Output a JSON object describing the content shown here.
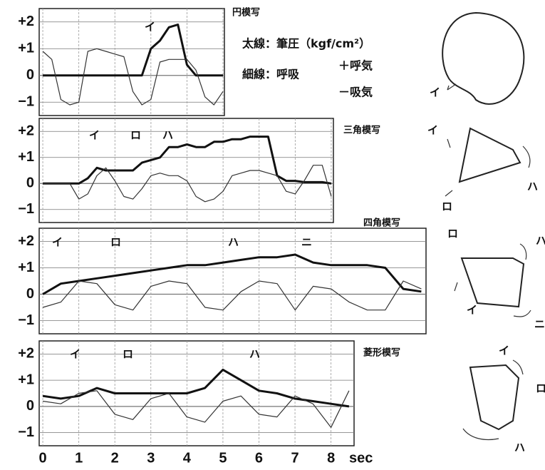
{
  "chart_data": [
    {
      "type": "line",
      "title": "円模写",
      "notes": [
        "太線：筆圧（kgf/cm²）",
        "細線：呼吸",
        "＋呼気",
        "－吸気"
      ],
      "annotations": [
        "イ"
      ],
      "drawing_labels": [
        "イ"
      ],
      "xlim": [
        -0.1,
        5.04
      ],
      "ylim": [
        -1.5,
        2.5
      ],
      "yticks": [
        {
          "value": 2,
          "label": "+2"
        },
        {
          "value": 1,
          "label": "+1"
        },
        0,
        {
          "value": -1,
          "label": "−1"
        }
      ],
      "grid": true,
      "x": [
        0,
        0.25,
        0.5,
        0.75,
        1,
        1.25,
        1.5,
        1.75,
        2,
        2.25,
        2.5,
        2.75,
        3,
        3.25,
        3.5,
        3.75,
        4,
        4.25,
        4.5,
        4.75,
        5
      ],
      "series": [
        {
          "color": "#111111",
          "line_width": 3,
          "values": [
            0,
            0,
            0,
            0,
            0,
            0,
            0,
            0,
            0,
            0,
            0,
            0,
            1.0,
            1.3,
            1.8,
            1.9,
            0.4,
            0,
            0,
            0,
            0
          ]
        },
        {
          "color": "#333333",
          "line_width": 1.2,
          "values": [
            0.9,
            0.6,
            -0.9,
            -1.1,
            -1.0,
            0.9,
            1.0,
            0.9,
            0.8,
            0.7,
            -0.6,
            -1.1,
            -0.9,
            0.5,
            0.6,
            0.6,
            0.6,
            0.2,
            -0.8,
            -1.1,
            -0.6
          ]
        }
      ]
    },
    {
      "type": "line",
      "title": "三角模写",
      "annotations": [
        "イ",
        "ロ",
        "ハ"
      ],
      "drawing_labels": [
        "イ",
        "ロ",
        "ハ"
      ],
      "xlim": [
        -0.1,
        8.06
      ],
      "ylim": [
        -1.5,
        2.5
      ],
      "yticks": [
        {
          "value": 2,
          "label": "+2"
        },
        {
          "value": 1,
          "label": "+1"
        },
        0,
        {
          "value": -1,
          "label": "−1"
        }
      ],
      "grid": true,
      "x": [
        0,
        0.25,
        0.5,
        0.75,
        1,
        1.25,
        1.5,
        1.75,
        2,
        2.25,
        2.5,
        2.75,
        3,
        3.25,
        3.5,
        3.75,
        4,
        4.25,
        4.5,
        4.75,
        5,
        5.25,
        5.5,
        5.75,
        6,
        6.25,
        6.5,
        6.75,
        7,
        7.25,
        7.5,
        7.75,
        8
      ],
      "series": [
        {
          "color": "#111111",
          "line_width": 3,
          "values": [
            0,
            0,
            0,
            0,
            0,
            0.2,
            0.6,
            0.5,
            0.5,
            0.5,
            0.5,
            0.8,
            0.9,
            1.0,
            1.4,
            1.4,
            1.5,
            1.4,
            1.4,
            1.6,
            1.6,
            1.7,
            1.7,
            1.8,
            1.8,
            1.8,
            0.3,
            0.1,
            0.1,
            0.05,
            0.05,
            0.05,
            0
          ]
        },
        {
          "color": "#333333",
          "line_width": 1.2,
          "values": [
            0,
            0,
            0,
            0,
            -0.6,
            -0.4,
            0.3,
            0.6,
            0.1,
            -0.5,
            -0.6,
            -0.2,
            0.3,
            0.4,
            0.3,
            0.3,
            0.1,
            -0.5,
            -0.7,
            -0.6,
            -0.3,
            0.3,
            0.4,
            0.5,
            0.5,
            0.4,
            0.3,
            -0.3,
            -0.4,
            0.1,
            0.7,
            0.7,
            -0.5
          ]
        }
      ]
    },
    {
      "type": "line",
      "title": "四角模写",
      "annotations": [
        "イ",
        "ロ",
        "ハ",
        "ニ"
      ],
      "drawing_labels": [
        "ロ",
        "ハ",
        "イ",
        "ニ"
      ],
      "xlim": [
        -0.1,
        10.63
      ],
      "ylim": [
        -1.5,
        2.5
      ],
      "yticks": [
        {
          "value": 2,
          "label": "+2"
        },
        {
          "value": 1,
          "label": "+1"
        },
        0,
        {
          "value": -1,
          "label": "−1"
        }
      ],
      "grid": true,
      "x": [
        0,
        0.5,
        1,
        1.5,
        2,
        2.5,
        3,
        3.5,
        4,
        4.5,
        5,
        5.5,
        6,
        6.5,
        7,
        7.5,
        8,
        8.5,
        9,
        9.5,
        10,
        10.5
      ],
      "series": [
        {
          "color": "#111111",
          "line_width": 3,
          "values": [
            0,
            0.4,
            0.5,
            0.6,
            0.7,
            0.8,
            0.9,
            1.0,
            1.1,
            1.1,
            1.2,
            1.3,
            1.4,
            1.4,
            1.5,
            1.2,
            1.1,
            1.1,
            1.1,
            1.0,
            0.2,
            0.1
          ]
        },
        {
          "color": "#333333",
          "line_width": 1.2,
          "values": [
            -0.5,
            -0.3,
            0.5,
            0.4,
            -0.4,
            -0.6,
            0.3,
            0.5,
            0.4,
            -0.5,
            -0.6,
            0.1,
            0.5,
            0.4,
            -0.6,
            0.3,
            0.2,
            -0.3,
            -0.6,
            -0.6,
            0.5,
            0.2
          ]
        }
      ]
    },
    {
      "type": "line",
      "title": "菱形模写",
      "annotations": [
        "イ",
        "ロ",
        "ハ"
      ],
      "drawing_labels": [
        "イ",
        "ロ",
        "ハ"
      ],
      "xlim": [
        -0.1,
        8.64
      ],
      "ylim": [
        -1.5,
        2.5
      ],
      "yticks": [
        {
          "value": 2,
          "label": "+2"
        },
        {
          "value": 1,
          "label": "+1"
        },
        0,
        {
          "value": -1,
          "label": "−1"
        }
      ],
      "grid": true,
      "xticks": [
        0,
        1,
        2,
        3,
        4,
        5,
        6,
        7,
        8
      ],
      "xlabel": "sec",
      "x": [
        0,
        0.5,
        1,
        1.5,
        2,
        2.5,
        3,
        3.5,
        4,
        4.5,
        5,
        5.5,
        6,
        6.5,
        7,
        7.5,
        8,
        8.5
      ],
      "series": [
        {
          "color": "#111111",
          "line_width": 3,
          "values": [
            0.4,
            0.3,
            0.4,
            0.7,
            0.5,
            0.5,
            0.5,
            0.5,
            0.5,
            0.7,
            1.4,
            1.0,
            0.6,
            0.5,
            0.3,
            0.2,
            0.1,
            0
          ]
        },
        {
          "color": "#333333",
          "line_width": 1.2,
          "values": [
            0.2,
            0.1,
            0.5,
            0.6,
            -0.3,
            -0.5,
            0.3,
            0.5,
            -0.4,
            -0.6,
            0.2,
            0.4,
            -0.3,
            -0.4,
            0.4,
            0.1,
            -0.8,
            0.6
          ]
        }
      ]
    }
  ]
}
